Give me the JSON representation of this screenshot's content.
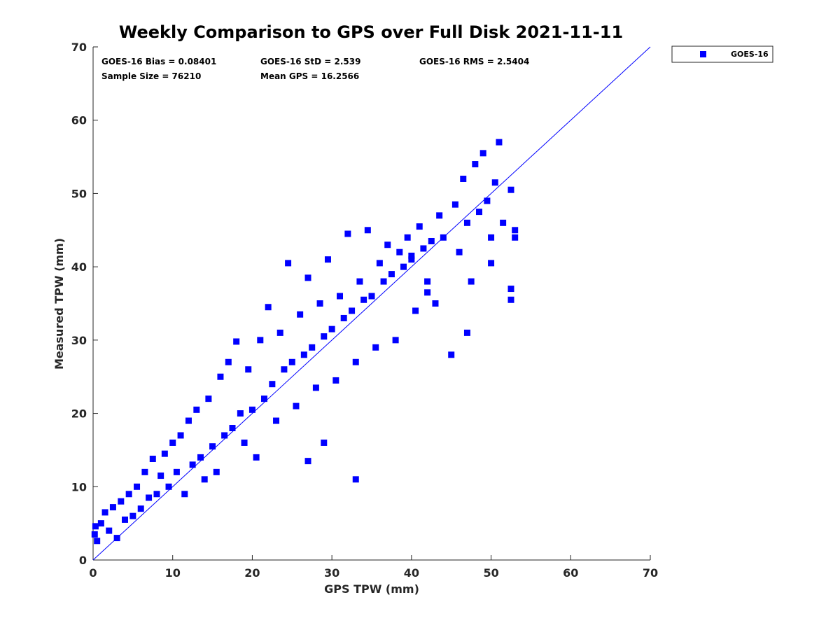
{
  "chart_data": {
    "type": "scatter",
    "title": "Weekly Comparison to GPS over Full Disk 2021-11-11",
    "xlabel": "GPS TPW (mm)",
    "ylabel": "Measured TPW (mm)",
    "xlim": [
      0,
      70
    ],
    "ylim": [
      0,
      70
    ],
    "xticks": [
      0,
      10,
      20,
      30,
      40,
      50,
      60,
      70
    ],
    "yticks": [
      0,
      10,
      20,
      30,
      40,
      50,
      60,
      70
    ],
    "grid": false,
    "legend_position": "outside-top-right",
    "reference_line": {
      "label": "",
      "from": [
        0,
        0
      ],
      "to": [
        70,
        70
      ],
      "color": "#0000ff"
    },
    "stats": {
      "bias": "GOES-16 Bias = 0.08401",
      "std": "GOES-16 StD = 2.539",
      "rms": "GOES-16 RMS = 2.5404",
      "sample_size": "Sample Size = 76210",
      "mean_gps": "Mean GPS = 16.2566"
    },
    "series": [
      {
        "name": "GOES-16",
        "color": "#0000ff",
        "marker": "square",
        "points": [
          [
            0.2,
            3.5
          ],
          [
            0.3,
            4.6
          ],
          [
            0.5,
            2.6
          ],
          [
            1.0,
            5.0
          ],
          [
            1.5,
            6.5
          ],
          [
            2.0,
            4.0
          ],
          [
            2.5,
            7.2
          ],
          [
            3.0,
            3.0
          ],
          [
            3.5,
            8.0
          ],
          [
            4.0,
            5.5
          ],
          [
            4.5,
            9.0
          ],
          [
            5.0,
            6.0
          ],
          [
            5.5,
            10.0
          ],
          [
            6.0,
            7.0
          ],
          [
            6.5,
            12.0
          ],
          [
            7.0,
            8.5
          ],
          [
            7.5,
            13.8
          ],
          [
            8.0,
            9.0
          ],
          [
            8.5,
            11.5
          ],
          [
            9.0,
            14.5
          ],
          [
            9.5,
            10.0
          ],
          [
            10.0,
            16.0
          ],
          [
            10.5,
            12.0
          ],
          [
            11.0,
            17.0
          ],
          [
            11.5,
            9.0
          ],
          [
            12.0,
            19.0
          ],
          [
            12.5,
            13.0
          ],
          [
            13.0,
            20.5
          ],
          [
            13.5,
            14.0
          ],
          [
            14.0,
            11.0
          ],
          [
            14.5,
            22.0
          ],
          [
            15.0,
            15.5
          ],
          [
            15.5,
            12.0
          ],
          [
            16.0,
            25.0
          ],
          [
            16.5,
            17.0
          ],
          [
            17.0,
            27.0
          ],
          [
            17.5,
            18.0
          ],
          [
            18.0,
            29.8
          ],
          [
            18.5,
            20.0
          ],
          [
            19.0,
            16.0
          ],
          [
            19.5,
            26.0
          ],
          [
            20.0,
            20.5
          ],
          [
            20.5,
            14.0
          ],
          [
            21.0,
            30.0
          ],
          [
            21.5,
            22.0
          ],
          [
            22.0,
            34.5
          ],
          [
            22.5,
            24.0
          ],
          [
            23.0,
            19.0
          ],
          [
            23.5,
            31.0
          ],
          [
            24.0,
            26.0
          ],
          [
            24.5,
            40.5
          ],
          [
            25.0,
            27.0
          ],
          [
            25.5,
            21.0
          ],
          [
            26.0,
            33.5
          ],
          [
            26.5,
            28.0
          ],
          [
            27.0,
            38.5
          ],
          [
            27.5,
            29.0
          ],
          [
            28.0,
            23.5
          ],
          [
            28.5,
            35.0
          ],
          [
            29.0,
            30.5
          ],
          [
            29.5,
            41.0
          ],
          [
            30.0,
            31.5
          ],
          [
            30.5,
            24.5
          ],
          [
            31.0,
            36.0
          ],
          [
            31.5,
            33.0
          ],
          [
            32.0,
            44.5
          ],
          [
            32.5,
            34.0
          ],
          [
            33.0,
            27.0
          ],
          [
            33.5,
            38.0
          ],
          [
            34.0,
            35.5
          ],
          [
            34.5,
            45.0
          ],
          [
            35.0,
            36.0
          ],
          [
            35.5,
            29.0
          ],
          [
            36.0,
            40.5
          ],
          [
            36.5,
            38.0
          ],
          [
            37.0,
            43.0
          ],
          [
            37.5,
            39.0
          ],
          [
            38.0,
            30.0
          ],
          [
            38.5,
            42.0
          ],
          [
            39.0,
            40.0
          ],
          [
            39.5,
            44.0
          ],
          [
            40.0,
            41.0
          ],
          [
            40.5,
            34.0
          ],
          [
            41.0,
            45.5
          ],
          [
            41.5,
            42.5
          ],
          [
            42.0,
            38.0
          ],
          [
            42.5,
            43.5
          ],
          [
            43.0,
            35.0
          ],
          [
            43.5,
            47.0
          ],
          [
            44.0,
            44.0
          ],
          [
            45.0,
            28.0
          ],
          [
            45.5,
            48.5
          ],
          [
            46.0,
            42.0
          ],
          [
            46.5,
            52.0
          ],
          [
            47.0,
            46.0
          ],
          [
            47.5,
            38.0
          ],
          [
            48.0,
            54.0
          ],
          [
            48.5,
            47.5
          ],
          [
            49.0,
            55.5
          ],
          [
            49.5,
            49.0
          ],
          [
            50.0,
            44.0
          ],
          [
            50.5,
            51.5
          ],
          [
            51.0,
            57.0
          ],
          [
            51.5,
            46.0
          ],
          [
            52.5,
            50.5
          ],
          [
            52.5,
            37.0
          ],
          [
            52.5,
            35.5
          ],
          [
            53.0,
            45.0
          ],
          [
            53.0,
            44.0
          ],
          [
            33.0,
            11.0
          ],
          [
            29.0,
            16.0
          ],
          [
            27.0,
            13.5
          ],
          [
            40.0,
            41.5
          ],
          [
            42.0,
            36.5
          ],
          [
            47.0,
            31.0
          ],
          [
            50.0,
            40.5
          ]
        ]
      }
    ]
  }
}
